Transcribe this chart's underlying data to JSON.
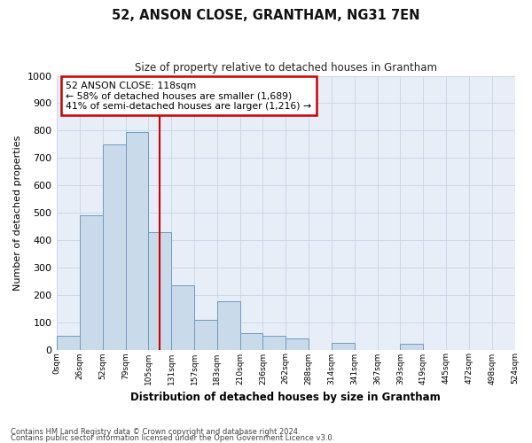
{
  "title": "52, ANSON CLOSE, GRANTHAM, NG31 7EN",
  "subtitle": "Size of property relative to detached houses in Grantham",
  "xlabel": "Distribution of detached houses by size in Grantham",
  "ylabel": "Number of detached properties",
  "bin_labels": [
    "0sqm",
    "26sqm",
    "52sqm",
    "79sqm",
    "105sqm",
    "131sqm",
    "157sqm",
    "183sqm",
    "210sqm",
    "236sqm",
    "262sqm",
    "288sqm",
    "314sqm",
    "341sqm",
    "367sqm",
    "393sqm",
    "419sqm",
    "445sqm",
    "472sqm",
    "498sqm",
    "524sqm"
  ],
  "bar_values": [
    50,
    490,
    750,
    795,
    430,
    235,
    110,
    175,
    60,
    50,
    40,
    0,
    25,
    0,
    0,
    20,
    0,
    0,
    0,
    0
  ],
  "bar_color": "#c9daea",
  "bar_edge_color": "#6b9dc0",
  "annotation_text": "52 ANSON CLOSE: 118sqm\n← 58% of detached houses are smaller (1,689)\n41% of semi-detached houses are larger (1,216) →",
  "annotation_box_color": "#ffffff",
  "annotation_box_edge": "#cc0000",
  "vline_color": "#cc0000",
  "ylim": [
    0,
    1000
  ],
  "yticks": [
    0,
    100,
    200,
    300,
    400,
    500,
    600,
    700,
    800,
    900,
    1000
  ],
  "grid_color": "#c8d4e4",
  "background_color": "#e8eef8",
  "footer_line1": "Contains HM Land Registry data © Crown copyright and database right 2024.",
  "footer_line2": "Contains public sector information licensed under the Open Government Licence v3.0."
}
